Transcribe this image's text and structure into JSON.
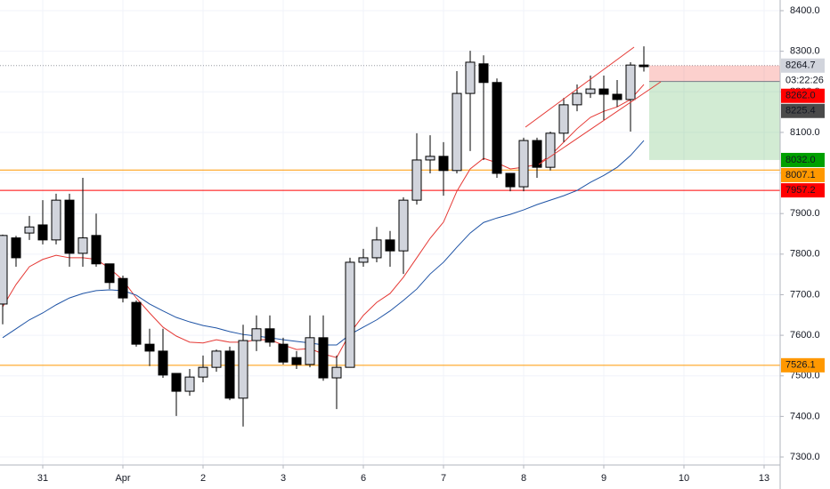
{
  "chart_data": {
    "type": "candlestick",
    "xlim": [
      -0.2,
      58.2
    ],
    "xticks": [
      {
        "value": 3,
        "label": "31"
      },
      {
        "value": 9,
        "label": "Apr"
      },
      {
        "value": 15,
        "label": "2"
      },
      {
        "value": 21,
        "label": "3"
      },
      {
        "value": 27,
        "label": "6"
      },
      {
        "value": 33,
        "label": "7"
      },
      {
        "value": 39,
        "label": "8"
      },
      {
        "value": 45,
        "label": "9"
      },
      {
        "value": 51,
        "label": "10"
      },
      {
        "value": 57,
        "label": "13"
      }
    ],
    "ylim": [
      7280.3,
      8426.3
    ],
    "yticks": [
      {
        "value": 7300,
        "label": "7300.0"
      },
      {
        "value": 7400,
        "label": "7400.0"
      },
      {
        "value": 7500,
        "label": "7500.0"
      },
      {
        "value": 7600,
        "label": "7600.0"
      },
      {
        "value": 7700,
        "label": "7700.0"
      },
      {
        "value": 7800,
        "label": "7800.0"
      },
      {
        "value": 7900,
        "label": "7900.0"
      },
      {
        "value": 8000,
        "label": "8000.0"
      },
      {
        "value": 8100,
        "label": "8100.0"
      },
      {
        "value": 8200,
        "label": "8200.0"
      },
      {
        "value": 8300,
        "label": "8300.0"
      },
      {
        "value": 8400,
        "label": "8400.0"
      }
    ],
    "grid": true,
    "up_color": "#d1d4dc",
    "down_color": "#000000",
    "open": [
      7677,
      7840,
      7852,
      7872,
      7835,
      7933,
      7802,
      7846,
      7776,
      7740,
      7681,
      7578,
      7561,
      7506,
      7462,
      7497,
      7521,
      7561,
      7445,
      7587,
      7616,
      7578,
      7545,
      7528,
      7594,
      7495,
      7521,
      7780,
      7791,
      7835,
      7808,
      7933,
      8032,
      8041,
      8006,
      8196,
      8269,
      8223,
      7999,
      7966,
      8080,
      8014,
      8098,
      8168,
      8196,
      8207,
      8194,
      8181,
      8266
    ],
    "high": [
      7848,
      7845,
      7894,
      7933,
      7949,
      7949,
      7988,
      7900,
      7776,
      7747,
      7686,
      7616,
      7616,
      7506,
      7517,
      7550,
      7565,
      7572,
      7626,
      7649,
      7649,
      7594,
      7561,
      7649,
      7649,
      7550,
      7791,
      7813,
      7867,
      7857,
      7940,
      8098,
      8093,
      8076,
      8251,
      8301,
      8290,
      8233,
      7999,
      8087,
      8087,
      8102,
      8185,
      8218,
      8240,
      8240,
      8229,
      8273,
      8312
    ],
    "low": [
      7627,
      7769,
      7835,
      7824,
      7824,
      7769,
      7769,
      7769,
      7714,
      7681,
      7572,
      7524,
      7495,
      7401,
      7451,
      7484,
      7510,
      7440,
      7375,
      7561,
      7572,
      7528,
      7517,
      7521,
      7488,
      7418,
      7521,
      7769,
      7780,
      7769,
      7751,
      7922,
      7999,
      7944,
      7999,
      8054,
      8032,
      7988,
      7955,
      7955,
      7988,
      8006,
      8076,
      8152,
      8185,
      8130,
      8163,
      8102,
      8250
    ],
    "close": [
      7846,
      7791,
      7867,
      7835,
      7933,
      7802,
      7840,
      7776,
      7730,
      7692,
      7578,
      7561,
      7502,
      7462,
      7497,
      7521,
      7561,
      7445,
      7587,
      7616,
      7583,
      7534,
      7528,
      7594,
      7495,
      7521,
      7780,
      7791,
      7835,
      7808,
      7933,
      8032,
      8041,
      8006,
      8196,
      8273,
      8223,
      7999,
      7966,
      8080,
      8014,
      8098,
      8168,
      8196,
      8207,
      8194,
      8181,
      8266,
      8262
    ],
    "moving_averages": [
      {
        "color": "#e53935",
        "values": [
          7670,
          7725,
          7769,
          7787,
          7797,
          7791,
          7791,
          7787,
          7765,
          7736,
          7692,
          7655,
          7620,
          7598,
          7583,
          7581,
          7589,
          7583,
          7583,
          7589,
          7589,
          7576,
          7565,
          7567,
          7554,
          7545,
          7605,
          7649,
          7681,
          7703,
          7743,
          7791,
          7839,
          7879,
          7955,
          8010,
          8036,
          8025,
          8010,
          8014,
          8021,
          8043,
          8076,
          8109,
          8137,
          8152,
          8163,
          8181,
          8218
        ]
      },
      {
        "color": "#1e53a5",
        "values": [
          7594,
          7616,
          7638,
          7655,
          7675,
          7692,
          7703,
          7710,
          7712,
          7710,
          7699,
          7677,
          7660,
          7644,
          7633,
          7624,
          7618,
          7609,
          7602,
          7598,
          7594,
          7589,
          7585,
          7581,
          7576,
          7576,
          7602,
          7620,
          7638,
          7660,
          7686,
          7714,
          7751,
          7780,
          7817,
          7852,
          7878,
          7889,
          7898,
          7909,
          7922,
          7933,
          7944,
          7957,
          7977,
          7994,
          8014,
          8043,
          8080
        ]
      }
    ],
    "position": {
      "start": 48,
      "stop": 8264.7,
      "entry": 8225.4,
      "target": 8032.0
    },
    "price_labels": [
      {
        "value": 8264.7,
        "label": "8264.7",
        "bg": "#d1d4dc",
        "fg": "#131722",
        "line": "dotted",
        "line_color": "#9598a1"
      },
      {
        "label": "03:22:26",
        "bg": "#ffffff",
        "fg": "#131722"
      },
      {
        "value": 8262.0,
        "label": "8262.0",
        "bg": "#ff0000",
        "fg": "#ffffff"
      },
      {
        "value": 8225.4,
        "label": "8225.4",
        "bg": "#4a4a4a",
        "fg": "#ffffff"
      },
      {
        "value": 8032.0,
        "label": "8032.0",
        "bg": "#00a000",
        "fg": "#ffffff"
      },
      {
        "value": 8007.1,
        "label": "8007.1",
        "bg": "#ff9800",
        "fg": "#131722",
        "line": "solid",
        "line_color": "#ff9800"
      },
      {
        "value": 7957.2,
        "label": "7957.2",
        "bg": "#ff0000",
        "fg": "#ffffff",
        "line": "solid",
        "line_color": "#ff0000"
      },
      {
        "value": 7526.1,
        "label": "7526.1",
        "bg": "#ff9800",
        "fg": "#131722",
        "line": "solid",
        "line_color": "#ff9800"
      }
    ]
  }
}
